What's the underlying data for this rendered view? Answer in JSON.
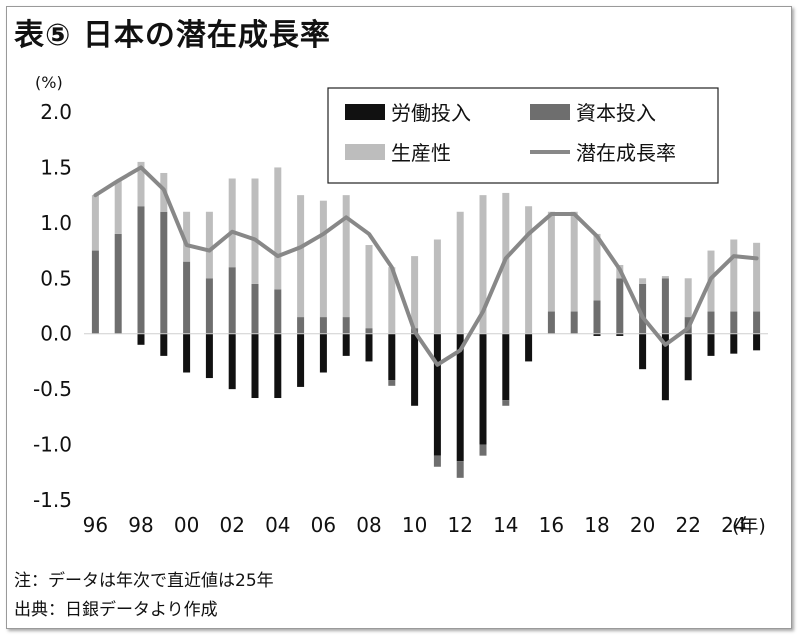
{
  "title": "表⑤ 日本の潜在成長率",
  "unit_label": "(%)",
  "year_unit": "(年)",
  "notes": {
    "note": "注：データは年次で直近値は25年",
    "source": "出典：日銀データより作成"
  },
  "colors": {
    "labor": "#111111",
    "capital": "#6e6e6e",
    "productivity": "#bdbdbd",
    "potential": "#888888"
  },
  "chart_data": {
    "type": "bar",
    "stacked": true,
    "ylim": [
      -1.5,
      2.0
    ],
    "yticks": [
      "2.0",
      "1.5",
      "1.0",
      "0.5",
      "0.0",
      "-0.5",
      "-1.0",
      "-1.5"
    ],
    "yticks_values": [
      2.0,
      1.5,
      1.0,
      0.5,
      0.0,
      -0.5,
      -1.0,
      -1.5
    ],
    "x": [
      1996,
      1997,
      1998,
      1999,
      2000,
      2001,
      2002,
      2003,
      2004,
      2005,
      2006,
      2007,
      2008,
      2009,
      2010,
      2011,
      2012,
      2013,
      2014,
      2015,
      2016,
      2017,
      2018,
      2019,
      2020,
      2021,
      2022,
      2023,
      2024,
      2025
    ],
    "xtick_labels": [
      "96",
      "98",
      "00",
      "02",
      "04",
      "06",
      "08",
      "10",
      "12",
      "14",
      "16",
      "18",
      "20",
      "22",
      "24"
    ],
    "xtick_years": [
      1996,
      1998,
      2000,
      2002,
      2004,
      2006,
      2008,
      2010,
      2012,
      2014,
      2016,
      2018,
      2020,
      2022,
      2024
    ],
    "legend_position": "top-right",
    "series": [
      {
        "name": "労働投入",
        "key": "labor",
        "kind": "bar",
        "values": [
          0.0,
          0.0,
          -0.1,
          -0.2,
          -0.35,
          -0.4,
          -0.5,
          -0.58,
          -0.58,
          -0.48,
          -0.35,
          -0.2,
          -0.25,
          -0.42,
          -0.65,
          -1.1,
          -1.15,
          -1.0,
          -0.6,
          -0.25,
          0.0,
          0.0,
          -0.02,
          -0.02,
          -0.32,
          -0.6,
          -0.42,
          -0.2,
          -0.18,
          -0.15
        ]
      },
      {
        "name": "資本投入",
        "key": "capital",
        "kind": "bar",
        "values": [
          0.75,
          0.9,
          1.15,
          1.1,
          0.65,
          0.5,
          0.6,
          0.45,
          0.4,
          0.15,
          0.15,
          0.15,
          0.05,
          -0.05,
          0.05,
          -0.1,
          -0.15,
          -0.1,
          -0.05,
          0.0,
          0.2,
          0.2,
          0.3,
          0.5,
          0.45,
          0.5,
          0.15,
          0.2,
          0.2,
          0.2
        ]
      },
      {
        "name": "生産性",
        "key": "productivity",
        "kind": "bar",
        "values": [
          0.5,
          0.48,
          0.4,
          0.35,
          0.45,
          0.6,
          0.8,
          0.95,
          1.1,
          1.1,
          1.05,
          1.1,
          0.75,
          0.6,
          0.65,
          0.85,
          1.1,
          1.25,
          1.27,
          1.15,
          0.9,
          0.9,
          0.6,
          0.12,
          0.05,
          0.02,
          0.35,
          0.55,
          0.65,
          0.62
        ]
      },
      {
        "name": "潜在成長率",
        "key": "potential",
        "kind": "line",
        "values": [
          1.25,
          1.38,
          1.5,
          1.3,
          0.8,
          0.75,
          0.92,
          0.85,
          0.7,
          0.78,
          0.9,
          1.05,
          0.9,
          0.6,
          0.02,
          -0.28,
          -0.15,
          0.2,
          0.68,
          0.9,
          1.08,
          1.08,
          0.88,
          0.58,
          0.15,
          -0.1,
          0.05,
          0.5,
          0.7,
          0.68
        ]
      }
    ]
  }
}
